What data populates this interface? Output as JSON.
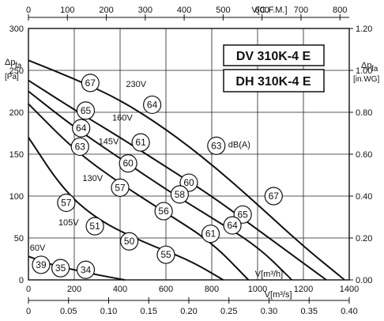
{
  "chart_data": {
    "type": "line",
    "model_labels": [
      "DV 310K-4 E",
      "DH 310K-4 E"
    ],
    "x_axis_bottom": {
      "label": "V[m³/h]",
      "ticks": [
        0,
        200,
        400,
        600,
        800,
        1000,
        1200,
        1400
      ],
      "range": [
        0,
        1400
      ]
    },
    "x_axis_bottom2": {
      "label": "V[m³/s]",
      "ticks": [
        "0",
        "0.05",
        "0.10",
        "0.15",
        "0.20",
        "0.25",
        "0.30",
        "0.35",
        "0.40"
      ],
      "range": [
        0,
        0.4
      ]
    },
    "x_axis_top": {
      "label": "V[C.F.M.]",
      "ticks": [
        0,
        100,
        200,
        300,
        400,
        500,
        600,
        700,
        800
      ]
    },
    "y_axis_left": {
      "label_top": "Δp",
      "label_sub": "fa",
      "unit": "[Pa]",
      "ticks": [
        0,
        50,
        100,
        150,
        200,
        250,
        300
      ],
      "range": [
        0,
        300
      ]
    },
    "y_axis_right": {
      "label_top": "Δp",
      "label_sub": "fa",
      "unit": "[in.WG]",
      "ticks": [
        "0.00",
        "0.20",
        "0.40",
        "0.60",
        "0.80",
        "1.00",
        "1.20"
      ]
    },
    "series": [
      {
        "name": "230V",
        "points": [
          [
            0,
            262
          ],
          [
            200,
            240
          ],
          [
            400,
            215
          ],
          [
            600,
            180
          ],
          [
            800,
            138
          ],
          [
            1000,
            90
          ],
          [
            1200,
            40
          ],
          [
            1380,
            0
          ]
        ]
      },
      {
        "name": "160V",
        "points": [
          [
            0,
            238
          ],
          [
            200,
            203
          ],
          [
            400,
            170
          ],
          [
            600,
            135
          ],
          [
            800,
            100
          ],
          [
            1000,
            60
          ],
          [
            1200,
            20
          ],
          [
            1300,
            0
          ]
        ]
      },
      {
        "name": "145V",
        "points": [
          [
            0,
            225
          ],
          [
            200,
            182
          ],
          [
            400,
            145
          ],
          [
            600,
            108
          ],
          [
            800,
            74
          ],
          [
            1000,
            40
          ],
          [
            1150,
            0
          ]
        ]
      },
      {
        "name": "130V",
        "points": [
          [
            0,
            210
          ],
          [
            200,
            155
          ],
          [
            400,
            115
          ],
          [
            600,
            80
          ],
          [
            800,
            45
          ],
          [
            960,
            0
          ]
        ]
      },
      {
        "name": "105V",
        "points": [
          [
            0,
            170
          ],
          [
            150,
            108
          ],
          [
            300,
            72
          ],
          [
            500,
            45
          ],
          [
            700,
            24
          ],
          [
            850,
            0
          ]
        ]
      },
      {
        "name": "60V",
        "points": [
          [
            0,
            28
          ],
          [
            100,
            18
          ],
          [
            200,
            12
          ],
          [
            300,
            6
          ],
          [
            420,
            0
          ]
        ]
      }
    ],
    "annotations": [
      {
        "label": "67",
        "x": 270,
        "y": 235
      },
      {
        "label": "65",
        "x": 250,
        "y": 202
      },
      {
        "label": "64",
        "x": 230,
        "y": 181
      },
      {
        "label": "63",
        "x": 225,
        "y": 159
      },
      {
        "label": "57",
        "x": 165,
        "y": 92
      },
      {
        "label": "51",
        "x": 290,
        "y": 64
      },
      {
        "label": "39",
        "x": 55,
        "y": 18
      },
      {
        "label": "35",
        "x": 140,
        "y": 14
      },
      {
        "label": "34",
        "x": 250,
        "y": 12
      },
      {
        "label": "64",
        "x": 540,
        "y": 209
      },
      {
        "label": "61",
        "x": 490,
        "y": 164
      },
      {
        "label": "60",
        "x": 435,
        "y": 139
      },
      {
        "label": "57",
        "x": 400,
        "y": 110
      },
      {
        "label": "50",
        "x": 440,
        "y": 46
      },
      {
        "label": "63",
        "x": 820,
        "y": 160
      },
      {
        "label": "60",
        "x": 700,
        "y": 116
      },
      {
        "label": "58",
        "x": 660,
        "y": 102
      },
      {
        "label": "56",
        "x": 590,
        "y": 82
      },
      {
        "label": "55",
        "x": 600,
        "y": 30
      },
      {
        "label": "67",
        "x": 1070,
        "y": 100
      },
      {
        "label": "65",
        "x": 935,
        "y": 78
      },
      {
        "label": "64",
        "x": 890,
        "y": 65
      },
      {
        "label": "61",
        "x": 795,
        "y": 55
      }
    ],
    "labels": [
      {
        "text": "230V",
        "x": 470,
        "y": 230
      },
      {
        "text": "160V",
        "x": 410,
        "y": 190
      },
      {
        "text": "145V",
        "x": 350,
        "y": 162
      },
      {
        "text": "130V",
        "x": 280,
        "y": 118
      },
      {
        "text": "105V",
        "x": 175,
        "y": 65
      },
      {
        "text": "60V",
        "x": 40,
        "y": 35
      },
      {
        "text": "dB(A)",
        "x": 920,
        "y": 158
      }
    ]
  }
}
